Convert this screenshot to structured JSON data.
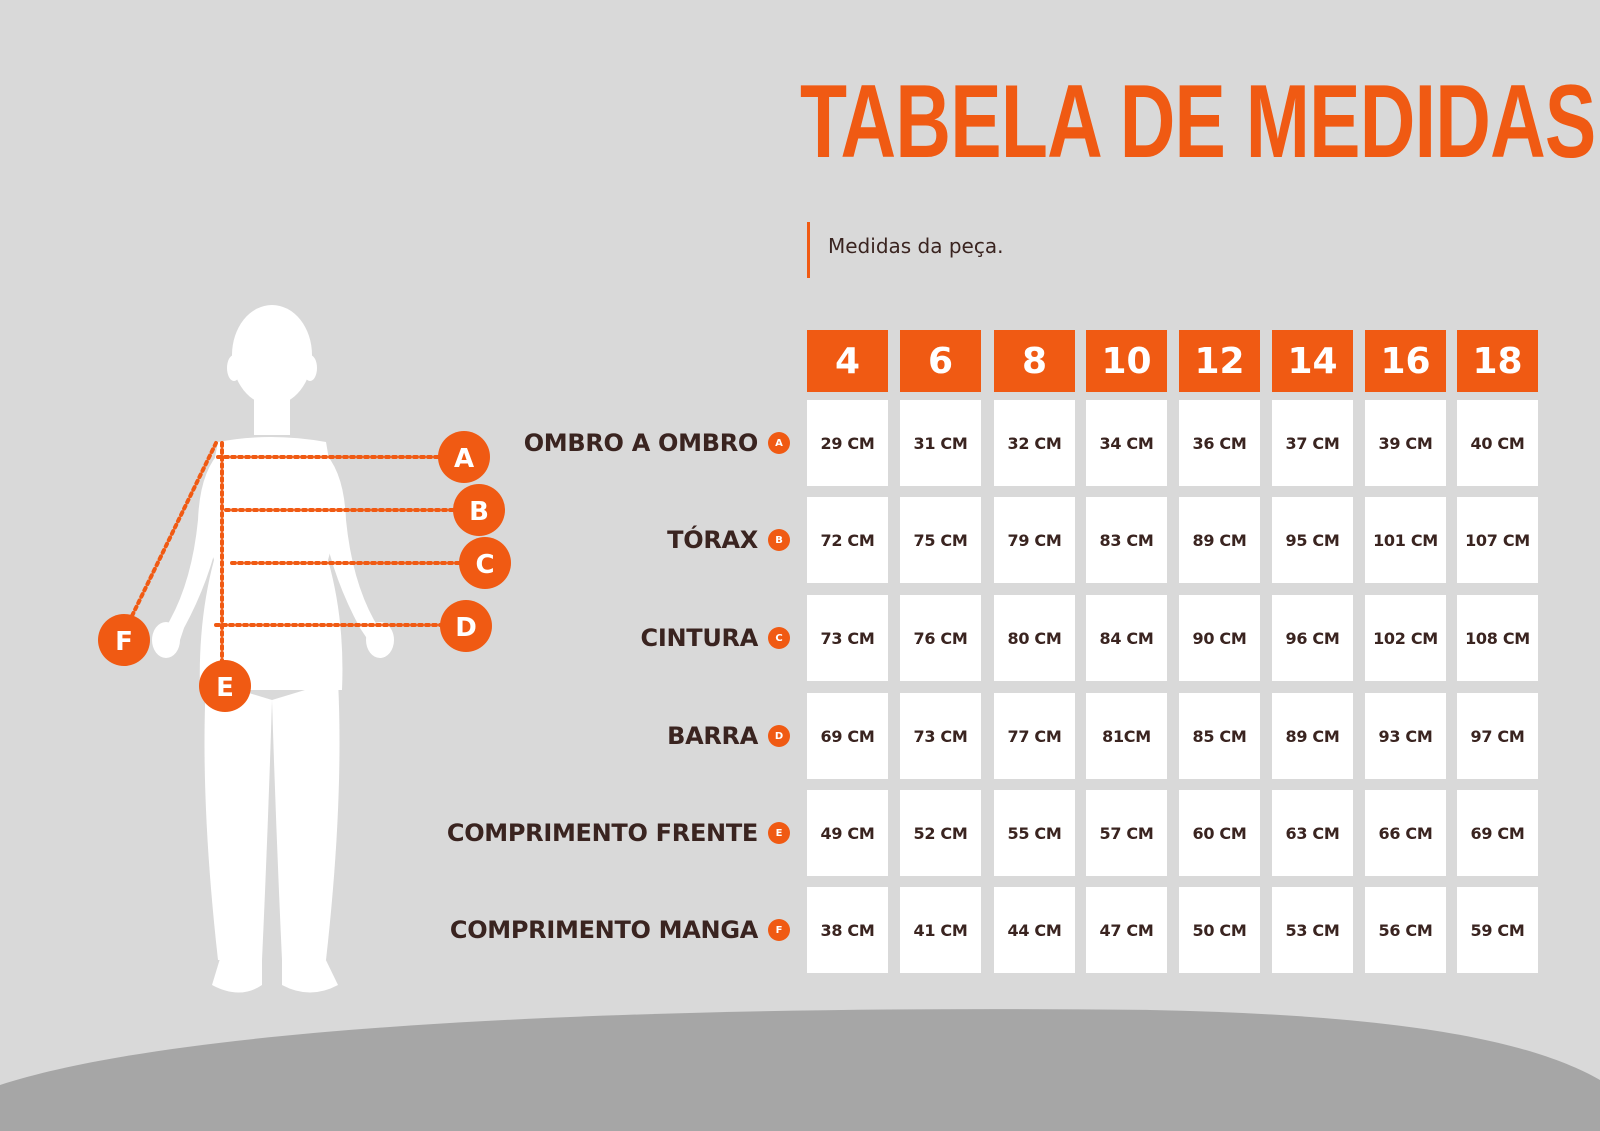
{
  "title": "TABELA DE MEDIDAS",
  "subtitle": "Medidas da peça.",
  "colors": {
    "accent": "#f05a13",
    "text": "#3a2420",
    "background": "#d9d9d9",
    "wave": "#a6a6a6",
    "cell": "#ffffff"
  },
  "figure_markers": [
    "A",
    "B",
    "C",
    "D",
    "E",
    "F"
  ],
  "sizes": [
    "4",
    "6",
    "8",
    "10",
    "12",
    "14",
    "16",
    "18"
  ],
  "rows": [
    {
      "label": "OMBRO A OMBRO",
      "badge": "A",
      "values": [
        "29 CM",
        "31 CM",
        "32 CM",
        "34 CM",
        "36 CM",
        "37 CM",
        "39 CM",
        "40 CM"
      ]
    },
    {
      "label": "TÓRAX",
      "badge": "B",
      "values": [
        "72 CM",
        "75 CM",
        "79 CM",
        "83 CM",
        "89 CM",
        "95 CM",
        "101 CM",
        "107 CM"
      ]
    },
    {
      "label": "CINTURA",
      "badge": "C",
      "values": [
        "73 CM",
        "76 CM",
        "80 CM",
        "84 CM",
        "90 CM",
        "96 CM",
        "102 CM",
        "108 CM"
      ]
    },
    {
      "label": "BARRA",
      "badge": "D",
      "values": [
        "69 CM",
        "73 CM",
        "77 CM",
        "81CM",
        "85 CM",
        "89 CM",
        "93 CM",
        "97 CM"
      ]
    },
    {
      "label": "COMPRIMENTO FRENTE",
      "badge": "E",
      "values": [
        "49 CM",
        "52 CM",
        "55 CM",
        "57 CM",
        "60 CM",
        "63 CM",
        "66 CM",
        "69 CM"
      ]
    },
    {
      "label": "COMPRIMENTO MANGA",
      "badge": "F",
      "values": [
        "38 CM",
        "41 CM",
        "44 CM",
        "47 CM",
        "50 CM",
        "53 CM",
        "56 CM",
        "59 CM"
      ]
    }
  ]
}
